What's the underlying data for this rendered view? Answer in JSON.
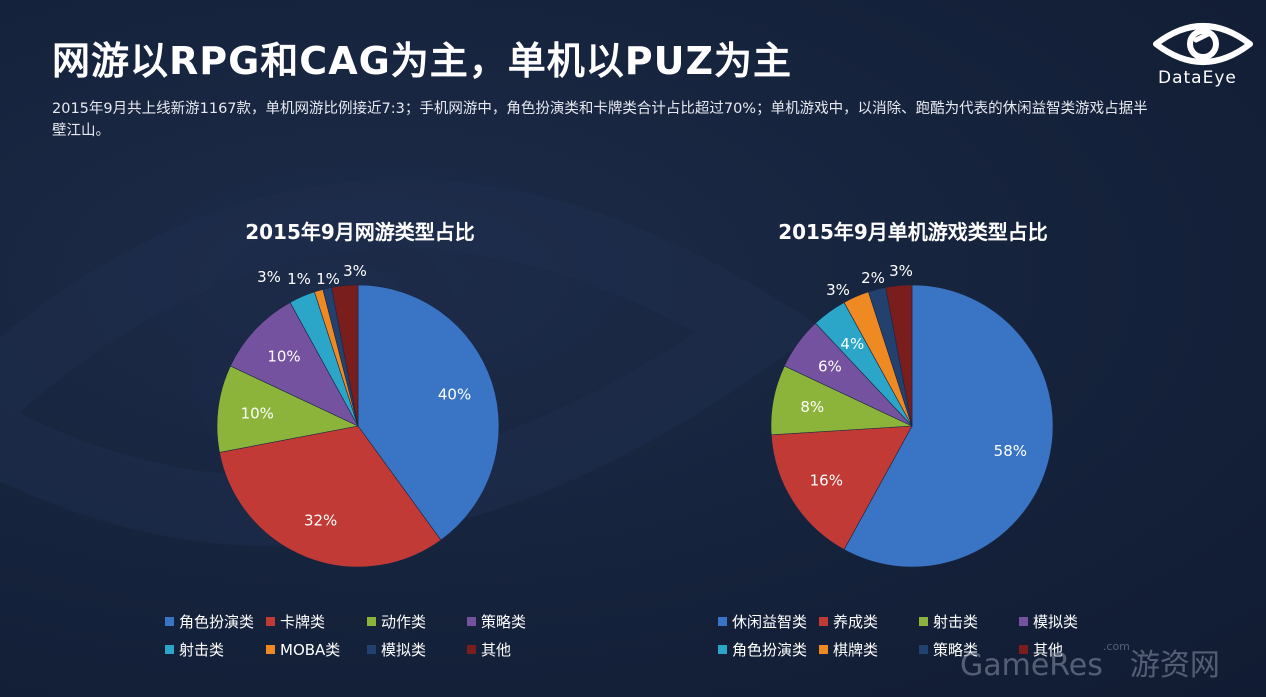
{
  "header": {
    "title": "网游以RPG和CAG为主，单机以PUZ为主",
    "subtitle": "2015年9月共上线新游1167款，单机网游比例接近7:3；手机网游中，角色扮演类和卡牌类合计占比超过70%；单机游戏中，以消除、跑酷为代表的休闲益智类游戏占据半壁江山。"
  },
  "logo": {
    "text": "DataEye",
    "icon": "eye-icon"
  },
  "watermark": {
    "main": "GameRes",
    "com": ".com",
    "cn": "游资网"
  },
  "chart_data": [
    {
      "type": "pie",
      "title": "2015年9月网游类型占比",
      "categories": [
        "角色扮演类",
        "卡牌类",
        "动作类",
        "策略类",
        "射击类",
        "MOBA类",
        "模拟类",
        "其他"
      ],
      "values": [
        40,
        32,
        10,
        10,
        3,
        1,
        1,
        3
      ],
      "labels": [
        "40%",
        "32%",
        "10%",
        "10%",
        "3%",
        "1%",
        "1%",
        "3%"
      ],
      "colors": [
        "#3a74c4",
        "#c23a36",
        "#8db43a",
        "#7552a0",
        "#2ba6c8",
        "#ef8a22",
        "#22416e",
        "#7a1d1d"
      ],
      "legend_position": "bottom"
    },
    {
      "type": "pie",
      "title": "2015年9月单机游戏类型占比",
      "categories": [
        "休闲益智类",
        "养成类",
        "射击类",
        "模拟类",
        "角色扮演类",
        "棋牌类",
        "策略类",
        "其他"
      ],
      "values": [
        58,
        16,
        8,
        6,
        4,
        3,
        2,
        3
      ],
      "labels": [
        "58%",
        "16%",
        "8%",
        "6%",
        "4%",
        "3%",
        "2%",
        "3%"
      ],
      "colors": [
        "#3a74c4",
        "#c23a36",
        "#8db43a",
        "#7552a0",
        "#2ba6c8",
        "#ef8a22",
        "#22416e",
        "#7a1d1d"
      ],
      "legend_position": "bottom"
    }
  ]
}
